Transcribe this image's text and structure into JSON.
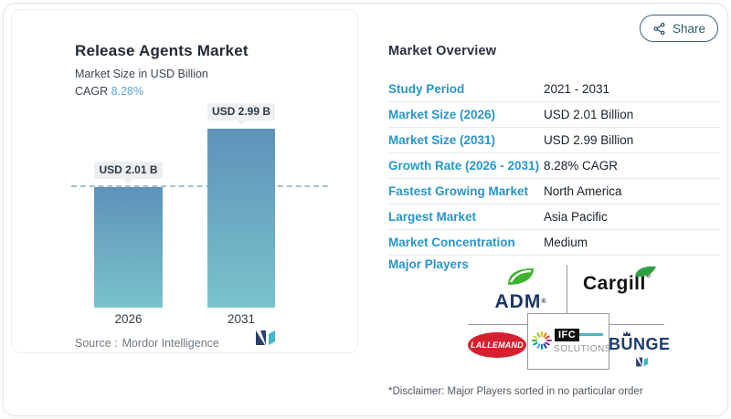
{
  "share": {
    "label": "Share"
  },
  "chart_card": {
    "title": "Release Agents Market",
    "subtitle": "Market Size in USD Billion",
    "cagr_label": "CAGR",
    "cagr_value": "8.28%",
    "source_label": "Source :",
    "source_value": "Mordor Intelligence"
  },
  "chart_data": {
    "type": "bar",
    "title": "Release Agents Market",
    "ylabel": "Market Size in USD Billion",
    "categories": [
      "2026",
      "2031"
    ],
    "values": [
      2.01,
      2.99
    ],
    "value_labels": [
      "USD 2.01 B",
      "USD 2.99 B"
    ],
    "unit": "USD Billion",
    "ylim": [
      0,
      3.2
    ],
    "grid": false,
    "bar_gradient_top": "#5f92ba",
    "bar_gradient_bottom": "#79c3cb",
    "reference_line": {
      "value": 2.01,
      "style": "dashed",
      "color": "#a7becf"
    }
  },
  "overview": {
    "heading": "Market Overview",
    "rows": [
      {
        "label": "Study Period",
        "value": "2021 - 2031"
      },
      {
        "label": "Market Size (2026)",
        "value": "USD 2.01 Billion"
      },
      {
        "label": "Market Size (2031)",
        "value": "USD 2.99 Billion"
      },
      {
        "label": "Growth Rate (2026 - 2031)",
        "value": "8.28% CAGR"
      },
      {
        "label": "Fastest Growing Market",
        "value": "North America"
      },
      {
        "label": "Largest Market",
        "value": "Asia Pacific"
      },
      {
        "label": "Market Concentration",
        "value": "Medium"
      }
    ],
    "major_players_label": "Major Players",
    "players": {
      "adm": "ADM",
      "cargill": "Cargill",
      "reg": "®",
      "lallemand": "LALLEMAND",
      "ifc_top": "IFC",
      "ifc_bottom": "SOLUTIONS",
      "bunge": "BUNGE"
    },
    "disclaimer": "*Disclaimer: Major Players sorted in no particular order"
  },
  "colors": {
    "accent_label": "#2796ca",
    "cagr_value": "#5fa8d5",
    "share": "#2e5a6e",
    "adm_navy": "#1b3668",
    "lallemand_red": "#d6202f",
    "bunge_navy": "#1d3c6e"
  }
}
